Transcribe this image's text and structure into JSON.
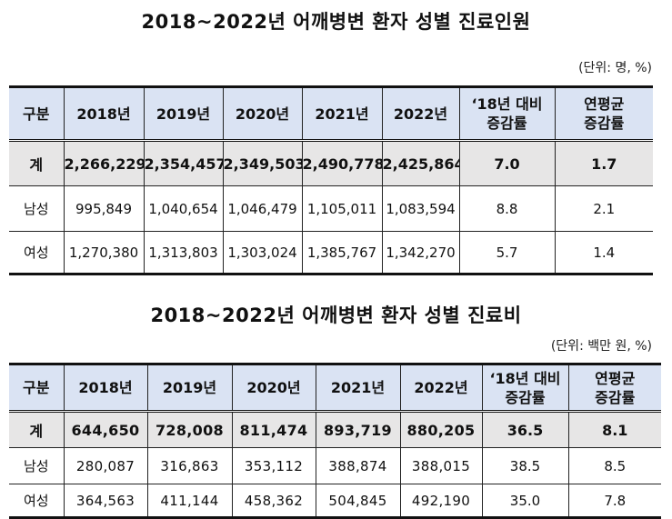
{
  "table1": {
    "title": "2018~2022년 어깨병변 환자 성별 진료인원",
    "unit": "(단위: 명, %)",
    "header_label": "구분",
    "years": [
      "2018년",
      "2019년",
      "2020년",
      "2021년",
      "2022년"
    ],
    "col_change_line1": "‘18년 대비",
    "col_change_line2": "증감률",
    "col_avg_line1": "연평균",
    "col_avg_line2": "증감률",
    "rows": [
      {
        "label": "계",
        "values": [
          "2,266,229",
          "2,354,457",
          "2,349,503",
          "2,490,778",
          "2,425,864"
        ],
        "change": "7.0",
        "avg": "1.7"
      },
      {
        "label": "남성",
        "values": [
          "995,849",
          "1,040,654",
          "1,046,479",
          "1,105,011",
          "1,083,594"
        ],
        "change": "8.8",
        "avg": "2.1"
      },
      {
        "label": "여성",
        "values": [
          "1,270,380",
          "1,313,803",
          "1,303,024",
          "1,385,767",
          "1,342,270"
        ],
        "change": "5.7",
        "avg": "1.4"
      }
    ]
  },
  "table2": {
    "title": "2018~2022년 어깨병변 환자 성별 진료비",
    "unit": "(단위: 백만 원, %)",
    "header_label": "구분",
    "years": [
      "2018년",
      "2019년",
      "2020년",
      "2021년",
      "2022년"
    ],
    "col_change_line1": "‘18년 대비",
    "col_change_line2": "증감률",
    "col_avg_line1": "연평균",
    "col_avg_line2": "증감률",
    "rows": [
      {
        "label": "계",
        "values": [
          "644,650",
          "728,008",
          "811,474",
          "893,719",
          "880,205"
        ],
        "change": "36.5",
        "avg": "8.1"
      },
      {
        "label": "남성",
        "values": [
          "280,087",
          "316,863",
          "353,112",
          "388,874",
          "388,015"
        ],
        "change": "38.5",
        "avg": "8.5"
      },
      {
        "label": "여성",
        "values": [
          "364,563",
          "411,144",
          "458,362",
          "504,845",
          "492,190"
        ],
        "change": "35.0",
        "avg": "7.8"
      }
    ]
  }
}
